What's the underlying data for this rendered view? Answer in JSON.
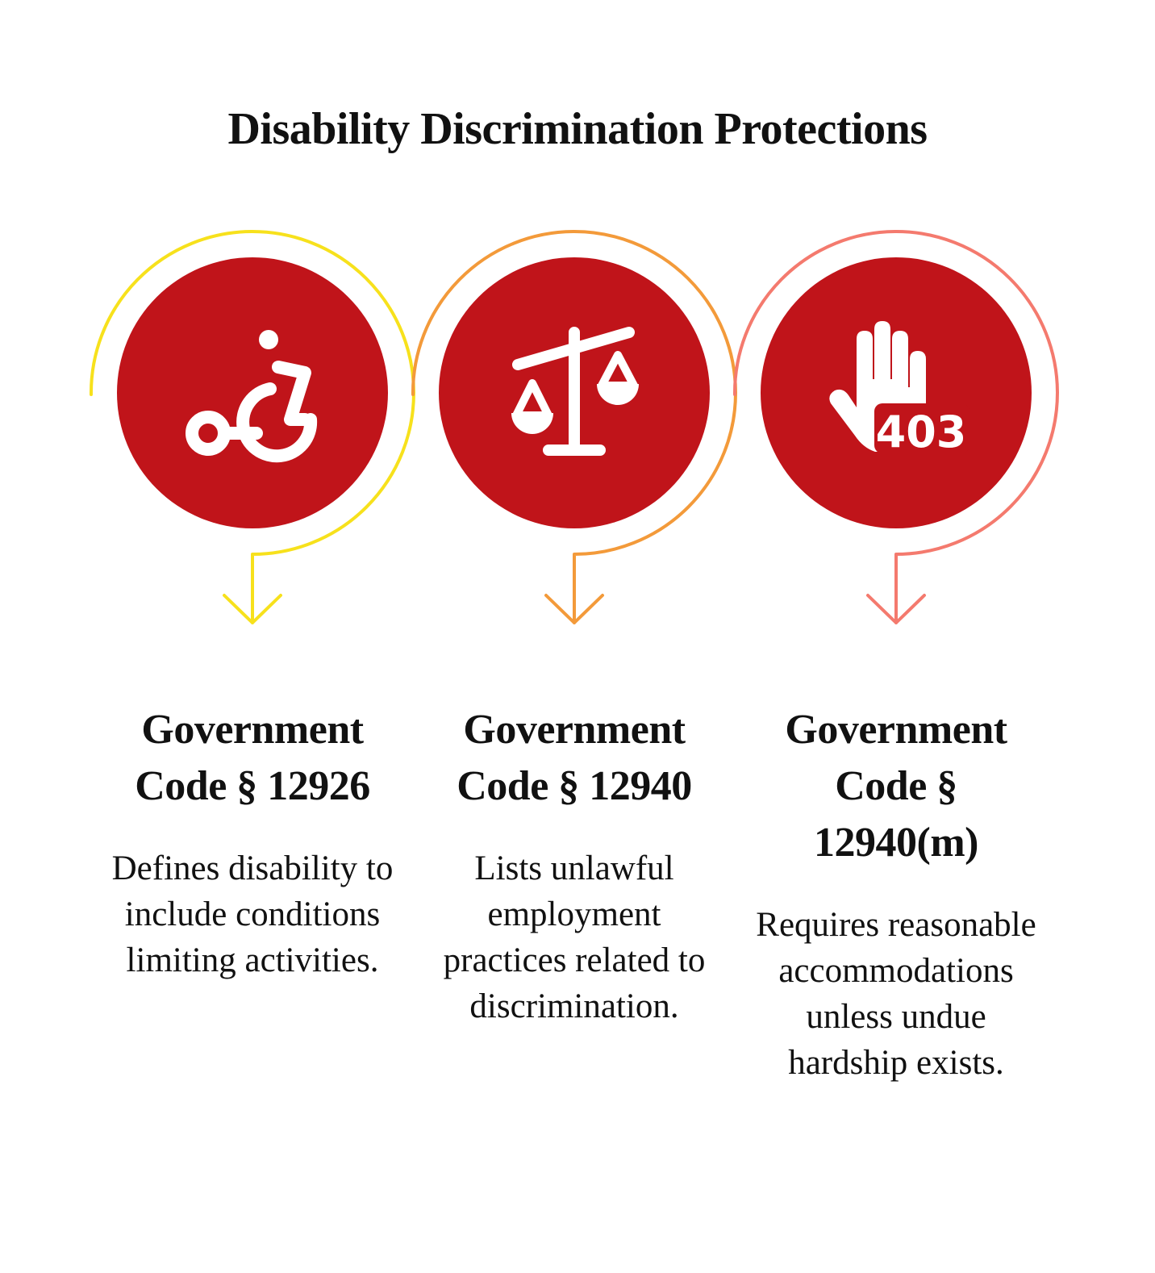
{
  "title": "Disability Discrimination Protections",
  "items": [
    {
      "heading": "Government Code § 12926",
      "description": "Defines disability to include conditions limiting activities."
    },
    {
      "heading": "Government Code § 12940",
      "description": "Lists unlawful employment practices related to discrimination."
    },
    {
      "heading": "Government Code § 12940(m)",
      "description": "Requires reasonable accommodations unless undue hardship exists.",
      "icon_text": "403"
    }
  ]
}
